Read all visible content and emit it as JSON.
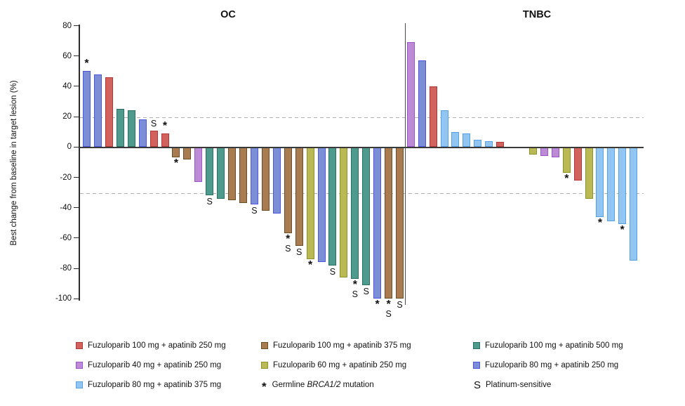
{
  "y_axis": {
    "label": "Best change from baseline in target lesion (%)",
    "ticks": [
      80,
      60,
      40,
      20,
      0,
      -20,
      -40,
      -60,
      -80,
      -100
    ]
  },
  "reference_lines": {
    "upper_dashed": 20,
    "lower_dashed": -30
  },
  "chart_data": {
    "type": "bar",
    "kind": "waterfall",
    "title": "",
    "ylabel": "Best change from baseline in target lesion (%)",
    "ylim": [
      -105,
      80
    ],
    "grid": "off",
    "legend_position": "bottom",
    "flag_meanings": {
      "*": "Germline BRCA1/2 mutation",
      "S": "Platinum-sensitive"
    },
    "groups": {
      "f100a250": {
        "label": "Fuzuloparib 100 mg + apatinib 250 mg",
        "fill": "#d2625e",
        "stroke": "#b23734"
      },
      "f100a375": {
        "label": "Fuzuloparib 100 mg + apatinib 375 mg",
        "fill": "#a87c50",
        "stroke": "#6b4d24"
      },
      "f100a500": {
        "label": "Fuzuloparib 100 mg + apatinib 500 mg",
        "fill": "#4e9a8c",
        "stroke": "#2a6f63"
      },
      "f40a250": {
        "label": "Fuzuloparib 40 mg + apatinib 250 mg",
        "fill": "#bd8ad6",
        "stroke": "#9c52cc"
      },
      "f60a250": {
        "label": "Fuzuloparib 60 mg + apatinib 250 mg",
        "fill": "#b9ba55",
        "stroke": "#8f9025"
      },
      "f80a250": {
        "label": "Fuzuloparib 80 mg + apatinib 250 mg",
        "fill": "#7c8fd6",
        "stroke": "#4a55e0"
      },
      "f80a375": {
        "label": "Fuzuloparib 80 mg + apatinib 375 mg",
        "fill": "#92c6f0",
        "stroke": "#55a0e6"
      }
    },
    "panels": [
      {
        "name": "OC",
        "bars": [
          {
            "value": 50,
            "group": "f80a250",
            "flags": "*"
          },
          {
            "value": 48,
            "group": "f80a250",
            "flags": ""
          },
          {
            "value": 46,
            "group": "f100a250",
            "flags": ""
          },
          {
            "value": 25,
            "group": "f100a500",
            "flags": ""
          },
          {
            "value": 24,
            "group": "f100a500",
            "flags": ""
          },
          {
            "value": 18,
            "group": "f80a250",
            "flags": ""
          },
          {
            "value": 11,
            "group": "f100a250",
            "flags": "S"
          },
          {
            "value": 9,
            "group": "f100a250",
            "flags": "*"
          },
          {
            "value": -7,
            "group": "f100a375",
            "flags": "*"
          },
          {
            "value": -8,
            "group": "f100a375",
            "flags": ""
          },
          {
            "value": -23,
            "group": "f40a250",
            "flags": ""
          },
          {
            "value": -32,
            "group": "f100a500",
            "flags": "S"
          },
          {
            "value": -34,
            "group": "f100a500",
            "flags": ""
          },
          {
            "value": -35,
            "group": "f100a375",
            "flags": ""
          },
          {
            "value": -37,
            "group": "f100a375",
            "flags": ""
          },
          {
            "value": -38,
            "group": "f80a250",
            "flags": "S"
          },
          {
            "value": -42,
            "group": "f100a375",
            "flags": ""
          },
          {
            "value": -44,
            "group": "f80a250",
            "flags": ""
          },
          {
            "value": -57,
            "group": "f100a375",
            "flags": "*S"
          },
          {
            "value": -65,
            "group": "f100a375",
            "flags": "S"
          },
          {
            "value": -74,
            "group": "f60a250",
            "flags": "*"
          },
          {
            "value": -76,
            "group": "f80a250",
            "flags": ""
          },
          {
            "value": -78,
            "group": "f100a500",
            "flags": "S"
          },
          {
            "value": -86,
            "group": "f60a250",
            "flags": ""
          },
          {
            "value": -87,
            "group": "f100a500",
            "flags": "*S"
          },
          {
            "value": -91,
            "group": "f100a500",
            "flags": "S"
          },
          {
            "value": -100,
            "group": "f80a250",
            "flags": "*"
          },
          {
            "value": -100,
            "group": "f100a375",
            "flags": "*S"
          },
          {
            "value": -100,
            "group": "f100a375",
            "flags": "S"
          }
        ]
      },
      {
        "name": "TNBC",
        "bars": [
          {
            "value": 69,
            "group": "f40a250",
            "flags": ""
          },
          {
            "value": 57,
            "group": "f80a250",
            "flags": ""
          },
          {
            "value": 40,
            "group": "f100a250",
            "flags": ""
          },
          {
            "value": 24,
            "group": "f80a375",
            "flags": ""
          },
          {
            "value": 10,
            "group": "f80a375",
            "flags": ""
          },
          {
            "value": 9,
            "group": "f80a375",
            "flags": ""
          },
          {
            "value": 5,
            "group": "f80a375",
            "flags": ""
          },
          {
            "value": 4,
            "group": "f80a375",
            "flags": ""
          },
          {
            "value": 3.5,
            "group": "f100a250",
            "flags": ""
          },
          {
            "value": 0,
            "group": null,
            "flags": ""
          },
          {
            "value": 0,
            "group": null,
            "flags": ""
          },
          {
            "value": -5,
            "group": "f60a250",
            "flags": ""
          },
          {
            "value": -6,
            "group": "f40a250",
            "flags": ""
          },
          {
            "value": -7,
            "group": "f40a250",
            "flags": ""
          },
          {
            "value": -17,
            "group": "f60a250",
            "flags": "*"
          },
          {
            "value": -22,
            "group": "f100a250",
            "flags": ""
          },
          {
            "value": -34,
            "group": "f60a250",
            "flags": ""
          },
          {
            "value": -46,
            "group": "f80a375",
            "flags": "*"
          },
          {
            "value": -49,
            "group": "f80a375",
            "flags": ""
          },
          {
            "value": -51,
            "group": "f80a375",
            "flags": "*"
          },
          {
            "value": -75,
            "group": "f80a375",
            "flags": ""
          }
        ]
      }
    ]
  },
  "legend": {
    "items": [
      {
        "type": "swatch",
        "group": "f100a250"
      },
      {
        "type": "swatch",
        "group": "f100a375"
      },
      {
        "type": "swatch",
        "group": "f100a500"
      },
      {
        "type": "swatch",
        "group": "f40a250"
      },
      {
        "type": "swatch",
        "group": "f60a250"
      },
      {
        "type": "swatch",
        "group": "f80a250"
      },
      {
        "type": "swatch",
        "group": "f80a375"
      },
      {
        "type": "symbol",
        "symbol": "*",
        "label_parts": [
          "Germline ",
          "BRCA1/2",
          " mutation"
        ],
        "italic_part": 1
      },
      {
        "type": "symbol",
        "symbol": "S",
        "label": "Platinum-sensitive"
      }
    ]
  }
}
